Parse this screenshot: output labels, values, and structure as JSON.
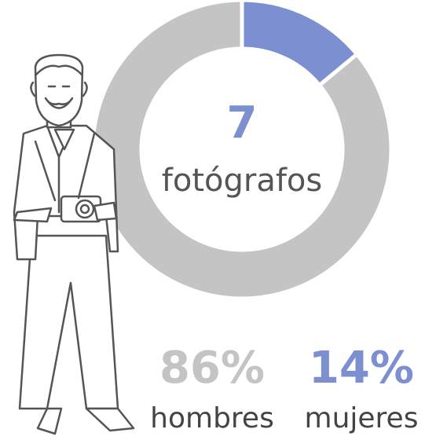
{
  "chart_data": {
    "type": "pie",
    "donut": true,
    "center_value": "7",
    "center_label": "fotógrafos",
    "categories": [
      "hombres",
      "mujeres"
    ],
    "values": [
      86,
      14
    ],
    "value_labels": [
      "86%",
      "14%"
    ],
    "colors": [
      "#c4c4c4",
      "#7b8fd1"
    ]
  }
}
